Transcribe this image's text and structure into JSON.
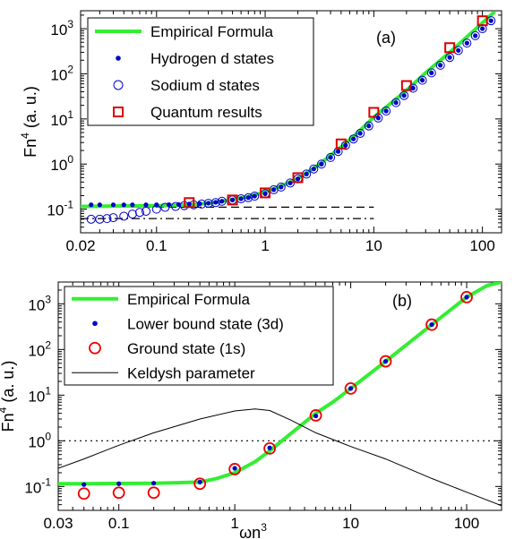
{
  "chart_data": [
    {
      "type": "line",
      "panel_label": "(a)",
      "xlabel": "",
      "ylabel_base": "Fn",
      "ylabel_sup": "4",
      "ylabel_unit": " (a. u.)",
      "xscale": "log",
      "yscale": "log",
      "xlim": [
        0.02,
        150
      ],
      "ylim": [
        0.03,
        2500
      ],
      "x_ticks": [
        {
          "v": 0.02,
          "l": "0.02"
        },
        {
          "v": 0.1,
          "l": "0.1"
        },
        {
          "v": 1,
          "l": "1"
        },
        {
          "v": 10,
          "l": "10"
        },
        {
          "v": 100,
          "l": "100"
        }
      ],
      "y_ticks": [
        {
          "v": 0.1,
          "b": "10",
          "e": "-1"
        },
        {
          "v": 1,
          "b": "10",
          "e": "0"
        },
        {
          "v": 10,
          "b": "10",
          "e": "1"
        },
        {
          "v": 100,
          "b": "10",
          "e": "2"
        },
        {
          "v": 1000,
          "b": "10",
          "e": "3"
        }
      ],
      "legend": {
        "placement": "top-left",
        "entries": [
          {
            "label": "Empirical Formula",
            "marker": "line",
            "color": "#33ee33"
          },
          {
            "label": "Hydrogen d states",
            "marker": "dot",
            "color": "#0000cc"
          },
          {
            "label": "Sodium d states",
            "marker": "open-circle",
            "color": "#0000cc"
          },
          {
            "label": "Quantum results",
            "marker": "open-square",
            "color": "#dd0000"
          }
        ]
      },
      "series": [
        {
          "name": "Empirical Formula",
          "style": "line",
          "color": "#33ee33",
          "x": [
            0.02,
            0.05,
            0.1,
            0.2,
            0.3,
            0.4,
            0.5,
            0.7,
            1,
            1.5,
            2,
            3,
            5,
            7,
            10,
            20,
            30,
            50,
            70,
            100,
            130
          ],
          "y": [
            0.115,
            0.118,
            0.12,
            0.125,
            0.135,
            0.15,
            0.165,
            0.19,
            0.24,
            0.35,
            0.48,
            0.9,
            2.4,
            4.8,
            11,
            43,
            105,
            300,
            620,
            1350,
            2400
          ]
        },
        {
          "name": "Hydrogen d states",
          "style": "dot",
          "color": "#0000cc",
          "x": [
            0.025,
            0.03,
            0.04,
            0.05,
            0.06,
            0.08,
            0.1,
            0.13,
            0.16,
            0.2,
            0.25,
            0.3,
            0.35,
            0.4,
            0.5,
            0.6,
            0.7,
            0.8,
            1,
            1.2,
            1.4,
            1.7,
            2,
            2.4,
            2.8,
            3.3,
            4,
            4.7,
            5.5,
            6.5,
            7.5,
            9,
            11,
            13,
            16,
            19,
            23,
            28,
            34,
            41,
            50,
            60,
            72,
            86,
            100,
            120
          ],
          "y": [
            0.125,
            0.125,
            0.125,
            0.125,
            0.125,
            0.125,
            0.125,
            0.126,
            0.127,
            0.13,
            0.132,
            0.136,
            0.142,
            0.15,
            0.16,
            0.17,
            0.18,
            0.195,
            0.22,
            0.27,
            0.31,
            0.38,
            0.47,
            0.6,
            0.78,
            1,
            1.4,
            1.9,
            2.6,
            3.6,
            4.8,
            7,
            10.5,
            15,
            23,
            33,
            48,
            72,
            105,
            155,
            230,
            330,
            480,
            700,
            1000,
            1500
          ]
        },
        {
          "name": "Sodium d states",
          "style": "open-circle",
          "color": "#0000cc",
          "x": [
            0.025,
            0.03,
            0.035,
            0.04,
            0.05,
            0.06,
            0.07,
            0.08,
            0.1,
            0.12,
            0.15,
            0.18,
            0.22,
            0.26,
            0.3,
            0.35,
            0.4,
            0.5,
            0.6,
            0.7,
            0.8,
            1,
            1.2,
            1.4,
            1.7,
            2,
            2.4,
            2.8,
            3.3,
            4,
            4.7,
            5.5,
            6.5,
            7.5,
            9,
            11,
            13,
            16,
            19,
            23,
            28,
            34,
            41,
            50,
            60,
            72,
            86,
            100,
            120
          ],
          "y": [
            0.06,
            0.06,
            0.062,
            0.065,
            0.07,
            0.078,
            0.085,
            0.09,
            0.1,
            0.11,
            0.115,
            0.12,
            0.125,
            0.13,
            0.135,
            0.14,
            0.15,
            0.16,
            0.17,
            0.18,
            0.195,
            0.22,
            0.27,
            0.31,
            0.38,
            0.47,
            0.6,
            0.78,
            1,
            1.4,
            1.9,
            2.6,
            3.6,
            4.8,
            7,
            10.5,
            15,
            23,
            33,
            48,
            72,
            105,
            155,
            230,
            330,
            480,
            700,
            1000,
            1500
          ]
        },
        {
          "name": "Quantum results",
          "style": "open-square",
          "color": "#dd0000",
          "x": [
            0.2,
            0.5,
            1,
            2,
            5,
            10,
            20,
            50,
            100
          ],
          "y": [
            0.14,
            0.16,
            0.23,
            0.5,
            2.8,
            14,
            55,
            380,
            1500
          ]
        }
      ],
      "reference_lines": [
        {
          "style": "dashed",
          "y": 0.111,
          "x_from": 0.02,
          "x_to": 10
        },
        {
          "style": "dash-dot",
          "y": 0.062,
          "x_from": 0.02,
          "x_to": 10
        }
      ]
    },
    {
      "type": "line",
      "panel_label": "(b)",
      "xlabel_base": "ωn",
      "xlabel_sup": "3",
      "ylabel_base": "Fn",
      "ylabel_sup": "4",
      "ylabel_unit": " (a. u.)",
      "xscale": "log",
      "yscale": "log",
      "xlim": [
        0.03,
        200
      ],
      "ylim": [
        0.03,
        3000
      ],
      "x_ticks": [
        {
          "v": 0.03,
          "l": "0.03"
        },
        {
          "v": 0.1,
          "l": "0.1"
        },
        {
          "v": 1,
          "l": "1"
        },
        {
          "v": 10,
          "l": "10"
        },
        {
          "v": 100,
          "l": "100"
        }
      ],
      "y_ticks": [
        {
          "v": 0.1,
          "b": "10",
          "e": "-1"
        },
        {
          "v": 1,
          "b": "10",
          "e": "0"
        },
        {
          "v": 10,
          "b": "10",
          "e": "1"
        },
        {
          "v": 100,
          "b": "10",
          "e": "2"
        },
        {
          "v": 1000,
          "b": "10",
          "e": "3"
        }
      ],
      "legend": {
        "placement": "top-left",
        "entries": [
          {
            "label": "Empirical Formula",
            "marker": "line",
            "color": "#33ee33"
          },
          {
            "label": "Lower bound state (3d)",
            "marker": "dot",
            "color": "#0000cc"
          },
          {
            "label": "Ground state (1s)",
            "marker": "open-circle",
            "color": "#ee0000"
          },
          {
            "label": "Keldysh parameter",
            "marker": "thin-line",
            "color": "#000000"
          }
        ]
      },
      "series": [
        {
          "name": "Empirical Formula",
          "style": "line",
          "color": "#33ee33",
          "x": [
            0.03,
            0.05,
            0.1,
            0.2,
            0.3,
            0.5,
            0.7,
            1,
            1.5,
            2,
            3,
            5,
            7,
            10,
            20,
            50,
            100,
            150,
            200
          ],
          "y": [
            0.115,
            0.115,
            0.116,
            0.118,
            0.12,
            0.125,
            0.15,
            0.2,
            0.35,
            0.6,
            1.4,
            4,
            7,
            14,
            55,
            350,
            1400,
            2500,
            3000
          ]
        },
        {
          "name": "Lower bound state (3d)",
          "style": "dot",
          "color": "#0000cc",
          "x": [
            0.05,
            0.1,
            0.2,
            0.5,
            1,
            2,
            5,
            10,
            20,
            50,
            100
          ],
          "y": [
            0.11,
            0.115,
            0.118,
            0.125,
            0.25,
            0.7,
            3.5,
            14,
            55,
            350,
            1400
          ]
        },
        {
          "name": "Ground state (1s)",
          "style": "open-circle",
          "color": "#ee0000",
          "x": [
            0.05,
            0.1,
            0.2,
            0.5,
            1,
            2,
            5,
            10,
            20,
            50,
            100
          ],
          "y": [
            0.07,
            0.073,
            0.073,
            0.115,
            0.24,
            0.68,
            3.6,
            14,
            55,
            350,
            1400
          ]
        },
        {
          "name": "Keldysh parameter",
          "style": "thin-line",
          "color": "#000000",
          "x": [
            0.03,
            0.05,
            0.1,
            0.2,
            0.5,
            1,
            1.5,
            2,
            3,
            5,
            10,
            20,
            50,
            100,
            200
          ],
          "y": [
            0.25,
            0.4,
            0.8,
            1.5,
            3,
            4.5,
            5,
            4.6,
            2.9,
            1.5,
            0.75,
            0.4,
            0.15,
            0.075,
            0.038
          ]
        }
      ],
      "reference_lines": [
        {
          "style": "dotted",
          "y": 1,
          "x_from": 0.03,
          "x_to": 200
        }
      ]
    }
  ]
}
